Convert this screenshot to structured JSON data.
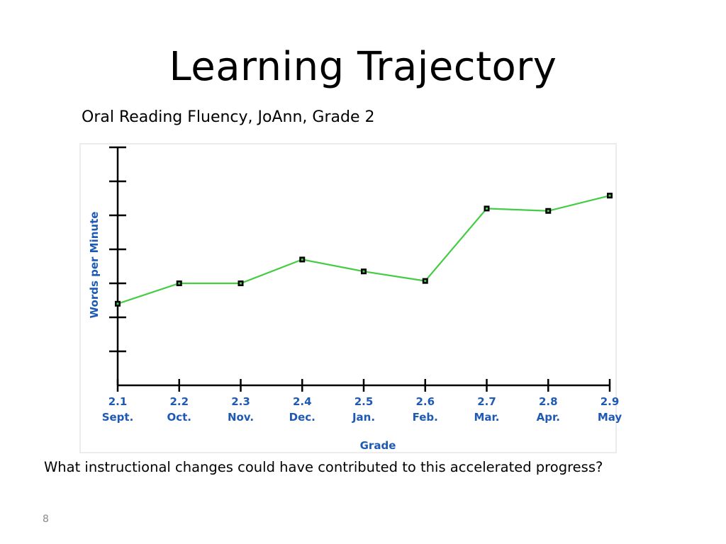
{
  "slide": {
    "title": "Learning Trajectory",
    "subtitle": "Oral Reading Fluency, JoAnn, Grade 2",
    "question": "What instructional changes could have contributed to this accelerated progress?",
    "page_number": "8"
  },
  "colors": {
    "line": "#44cc44",
    "marker": "#000000",
    "axis": "#000000",
    "label": "#1e5ab4"
  },
  "chart_data": {
    "type": "line",
    "title": "",
    "xlabel": "Grade",
    "ylabel": "Words per Minute",
    "categories": [
      "2.1",
      "2.2",
      "2.3",
      "2.4",
      "2.5",
      "2.6",
      "2.7",
      "2.8",
      "2.9"
    ],
    "category_sublabels": [
      "Sept.",
      "Oct.",
      "Nov.",
      "Dec.",
      "Jan.",
      "Feb.",
      "Mar.",
      "Apr.",
      "May"
    ],
    "y_tick_count": 7,
    "ylim": [
      0,
      7
    ],
    "y_ticks_labeled": false,
    "grid": false,
    "legend": "none",
    "series": [
      {
        "values": [
          2.4,
          3.0,
          3.0,
          3.7,
          3.35,
          3.07,
          5.2,
          5.13,
          5.58
        ]
      }
    ]
  }
}
